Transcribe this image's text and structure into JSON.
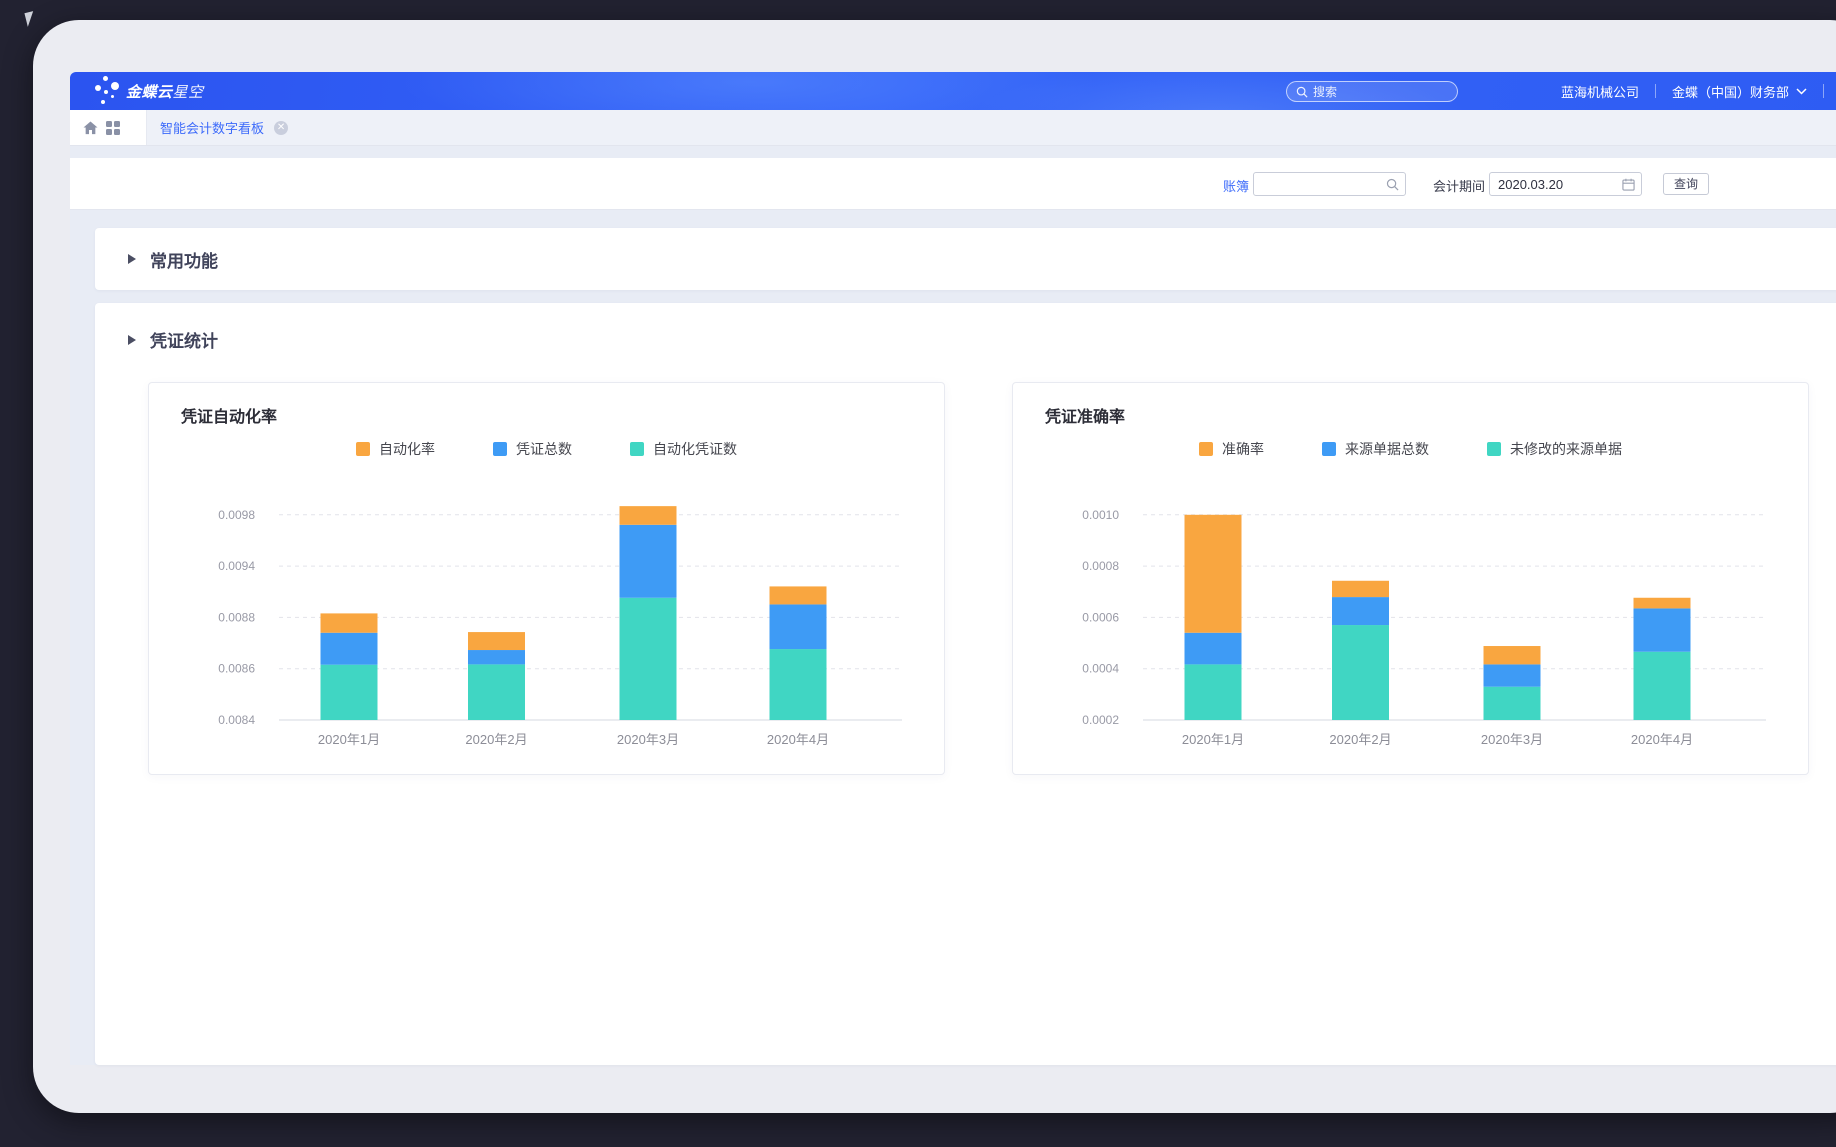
{
  "header": {
    "logo_brand": "金蝶云",
    "logo_suffix": "星空",
    "search_placeholder": "搜索",
    "company": "蓝海机械公司",
    "org": "金蝶（中国）财务部",
    "help_glyph": "?"
  },
  "tabs": {
    "active": "智能会计数字看板",
    "close_glyph": "✕"
  },
  "filter": {
    "book_label": "账簿",
    "book_value": "",
    "period_label": "会计期间",
    "period_value": "2020.03.20",
    "query_button": "查询"
  },
  "sections": {
    "common_functions": "常用功能",
    "voucher_stats": "凭证统计"
  },
  "colors": {
    "orange": "#F9A640",
    "blue": "#3E9BF5",
    "teal": "#40D6C3",
    "grid": "#e2e3ea",
    "axis": "#d6d8e0",
    "tick_text": "#999aa6",
    "cat_text": "#8c8d97"
  },
  "chart_data": [
    {
      "type": "bar",
      "stacked": true,
      "title": "凭证自动化率",
      "categories": [
        "2020年1月",
        "2020年2月",
        "2020年3月",
        "2020年4月"
      ],
      "y_ticks": [
        "0.0084",
        "0.0086",
        "0.0088",
        "0.0094",
        "0.0098"
      ],
      "legend": [
        {
          "label": "自动化率",
          "color": "orange"
        },
        {
          "label": "凭证总数",
          "color": "blue"
        },
        {
          "label": "自动化凭证数",
          "color": "teal"
        }
      ],
      "series": [
        {
          "name": "自动化凭证数",
          "color": "teal",
          "u_tops": [
            1.078,
            1.084,
            2.383,
            1.383
          ],
          "est_values": [
            0.008615,
            0.008617,
            0.00903,
            0.008677
          ]
        },
        {
          "name": "凭证总数",
          "color": "blue",
          "u_tops": [
            1.701,
            1.364,
            3.805,
            2.253
          ],
          "est_values": [
            0.00874,
            0.008673,
            0.009723,
            0.008952
          ]
        },
        {
          "name": "自动化率",
          "color": "orange",
          "u_tops": [
            2.078,
            1.714,
            4.169,
            2.604
          ],
          "est_values": [
            0.008846,
            0.008743,
            0.009868,
            0.009162
          ]
        }
      ]
    },
    {
      "type": "bar",
      "stacked": true,
      "title": "凭证准确率",
      "categories": [
        "2020年1月",
        "2020年2月",
        "2020年3月",
        "2020年4月"
      ],
      "y_ticks": [
        "0.0002",
        "0.0004",
        "0.0006",
        "0.0008",
        "0.0010"
      ],
      "legend": [
        {
          "label": "准确率",
          "color": "orange"
        },
        {
          "label": "来源单据总数",
          "color": "blue"
        },
        {
          "label": "未修改的来源单据",
          "color": "teal"
        }
      ],
      "series": [
        {
          "name": "未修改的来源单据",
          "color": "teal",
          "u_tops": [
            1.084,
            1.851,
            0.649,
            1.331
          ],
          "est_values": [
            0.000417,
            0.00057,
            0.00033,
            0.000466
          ]
        },
        {
          "name": "来源单据总数",
          "color": "blue",
          "u_tops": [
            1.701,
            2.396,
            1.084,
            2.175
          ],
          "est_values": [
            0.00054,
            0.000679,
            0.000417,
            0.000635
          ]
        },
        {
          "name": "准确率",
          "color": "orange",
          "u_tops": [
            4.0,
            2.714,
            1.442,
            2.383
          ],
          "est_values": [
            0.001,
            0.000743,
            0.000488,
            0.000677
          ]
        }
      ]
    }
  ]
}
